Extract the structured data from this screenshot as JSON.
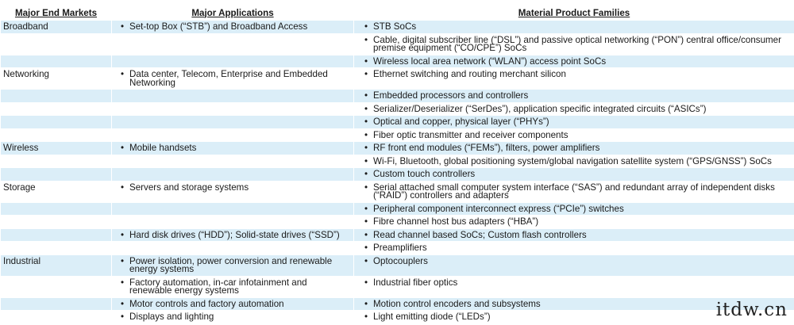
{
  "headers": {
    "col1": "Major End Markets",
    "col2": "Major Applications",
    "col3": "Material Product Families"
  },
  "bullet_glyph": "•",
  "rows": [
    {
      "market": "Broadband",
      "app": "Set-top Box (“STB”) and Broadband Access",
      "product": "STB SoCs",
      "shaded": true
    },
    {
      "market": "",
      "app": "",
      "product": "Cable, digital subscriber line (“DSL”) and passive optical networking (“PON”) central office/consumer premise equipment (“CO/CPE”) SoCs",
      "shaded": false
    },
    {
      "market": "",
      "app": "",
      "product": "Wireless local area network (“WLAN”) access point SoCs",
      "shaded": true
    },
    {
      "market": "Networking",
      "app": "Data center, Telecom, Enterprise and Embedded Networking",
      "product": "Ethernet switching and routing merchant silicon",
      "shaded": false
    },
    {
      "market": "",
      "app": "",
      "product": "Embedded processors and controllers",
      "shaded": true
    },
    {
      "market": "",
      "app": "",
      "product": "Serializer/Deserializer (“SerDes”), application specific integrated circuits (“ASICs”)",
      "shaded": false
    },
    {
      "market": "",
      "app": "",
      "product": "Optical and copper, physical layer (“PHYs”)",
      "shaded": true
    },
    {
      "market": "",
      "app": "",
      "product": "Fiber optic transmitter and receiver components",
      "shaded": false
    },
    {
      "market": "Wireless",
      "app": "Mobile handsets",
      "product": "RF front end modules (“FEMs”), filters, power amplifiers",
      "shaded": true
    },
    {
      "market": "",
      "app": "",
      "product": "Wi-Fi, Bluetooth, global positioning system/global navigation satellite system (“GPS/GNSS”) SoCs",
      "shaded": false
    },
    {
      "market": "",
      "app": "",
      "product": "Custom touch controllers",
      "shaded": true
    },
    {
      "market": "Storage",
      "app": "Servers and storage systems",
      "product": "Serial attached small computer system interface (“SAS”) and redundant array of independent disks (“RAID”) controllers and adapters",
      "shaded": false
    },
    {
      "market": "",
      "app": "",
      "product": "Peripheral component interconnect express (“PCIe”) switches",
      "shaded": true
    },
    {
      "market": "",
      "app": "",
      "product": "Fibre channel host bus adapters (“HBA”)",
      "shaded": false
    },
    {
      "market": "",
      "app": "Hard disk drives (“HDD”); Solid-state drives (“SSD”)",
      "product": "Read channel based SoCs; Custom flash controllers",
      "shaded": true
    },
    {
      "market": "",
      "app": "",
      "product": "Preamplifiers",
      "shaded": false
    },
    {
      "market": "Industrial",
      "app": "Power isolation, power conversion and renewable energy systems",
      "product": "Optocouplers",
      "shaded": true
    },
    {
      "market": "",
      "app": "Factory automation, in-car infotainment and renewable energy systems",
      "product": "Industrial fiber optics",
      "shaded": false
    },
    {
      "market": "",
      "app": "Motor controls and factory automation",
      "product": "Motion control encoders and subsystems",
      "shaded": true
    },
    {
      "market": "",
      "app": "Displays and lighting",
      "product": "Light emitting diode (“LEDs”)",
      "shaded": false
    }
  ],
  "colors": {
    "row_shade": "#dbeef8",
    "row_plain": "#ffffff"
  },
  "watermark": "itdw.cn"
}
